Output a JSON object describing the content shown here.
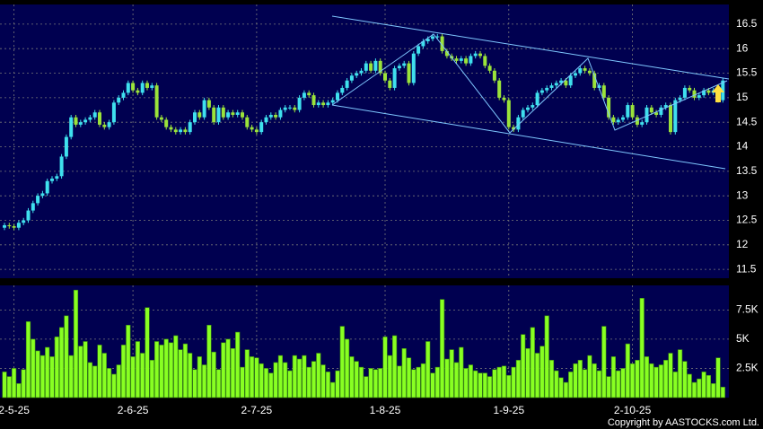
{
  "chart_data": [
    {
      "type": "candlestick",
      "up_color": "#3fe0ee",
      "down_color": "#9be33a",
      "ylim": [
        11.32,
        16.9
      ],
      "yticks": [
        11.5,
        12,
        12.5,
        13,
        13.5,
        14,
        14.5,
        15,
        15.5,
        16,
        16.5
      ],
      "grid": true,
      "open": [
        12.35,
        12.4,
        12.38,
        12.35,
        12.45,
        12.5,
        12.7,
        12.85,
        13.0,
        13.05,
        13.3,
        13.35,
        13.4,
        13.8,
        14.2,
        14.6,
        14.45,
        14.5,
        14.55,
        14.6,
        14.7,
        14.45,
        14.4,
        14.5,
        14.9,
        15.0,
        15.1,
        15.3,
        15.15,
        15.1,
        15.3,
        15.2,
        15.25,
        14.6,
        14.55,
        14.4,
        14.35,
        14.3,
        14.35,
        14.3,
        14.5,
        14.7,
        14.6,
        14.95,
        14.8,
        14.5,
        14.8,
        14.6,
        14.7,
        14.65,
        14.7,
        14.6,
        14.4,
        14.35,
        14.3,
        14.5,
        14.6,
        14.65,
        14.6,
        14.75,
        14.8,
        14.8,
        14.75,
        15.0,
        15.1,
        15.05,
        14.85,
        14.9,
        14.85,
        14.9,
        14.95,
        15.1,
        15.2,
        15.35,
        15.45,
        15.5,
        15.55,
        15.7,
        15.55,
        15.75,
        15.5,
        15.35,
        15.2,
        15.6,
        15.65,
        15.7,
        15.3,
        15.9,
        16.05,
        16.15,
        16.2,
        16.25,
        16.25,
        15.95,
        15.85,
        15.8,
        15.75,
        15.8,
        15.7,
        15.85,
        15.9,
        15.85,
        15.65,
        15.55,
        15.35,
        15.0,
        14.95,
        14.4,
        14.35,
        14.6,
        14.75,
        14.8,
        14.85,
        15.1,
        15.15,
        15.2,
        15.25,
        15.3,
        15.35,
        15.25,
        15.45,
        15.5,
        15.6,
        15.55,
        15.5,
        15.2,
        15.25,
        15.0,
        14.6,
        14.5,
        14.55,
        14.6,
        14.85,
        14.6,
        14.45,
        14.5,
        14.8,
        14.7,
        14.65,
        14.8,
        14.85,
        14.3,
        14.95,
        15.0,
        15.2,
        15.15,
        15.0,
        15.05,
        15.15,
        15.1,
        15.15,
        14.95
      ],
      "high": [
        12.45,
        12.45,
        12.43,
        12.5,
        12.55,
        12.75,
        12.9,
        13.05,
        13.1,
        13.35,
        13.4,
        13.45,
        13.85,
        14.25,
        14.65,
        14.65,
        14.55,
        14.6,
        14.65,
        14.75,
        14.75,
        14.5,
        14.55,
        14.95,
        15.05,
        15.15,
        15.35,
        15.35,
        15.2,
        15.35,
        15.35,
        15.3,
        15.3,
        14.65,
        14.6,
        14.45,
        14.4,
        14.4,
        14.4,
        14.55,
        14.75,
        14.75,
        15.0,
        15.0,
        14.85,
        14.85,
        14.85,
        14.75,
        14.75,
        14.75,
        14.75,
        14.65,
        14.45,
        14.4,
        14.55,
        14.65,
        14.7,
        14.7,
        14.8,
        14.85,
        14.85,
        14.85,
        15.05,
        15.15,
        15.15,
        15.1,
        14.95,
        14.95,
        14.95,
        15.0,
        15.15,
        15.25,
        15.4,
        15.5,
        15.55,
        15.6,
        15.75,
        15.75,
        15.8,
        15.8,
        15.55,
        15.4,
        15.65,
        15.7,
        15.75,
        15.75,
        15.95,
        16.1,
        16.2,
        16.25,
        16.3,
        16.3,
        16.3,
        16.0,
        15.9,
        15.85,
        15.85,
        15.85,
        15.9,
        15.95,
        15.95,
        15.9,
        15.7,
        15.6,
        15.4,
        15.05,
        15.0,
        14.45,
        14.65,
        14.8,
        14.85,
        14.9,
        15.15,
        15.2,
        15.25,
        15.3,
        15.35,
        15.4,
        15.4,
        15.5,
        15.55,
        15.65,
        15.65,
        15.6,
        15.55,
        15.3,
        15.3,
        15.05,
        14.65,
        14.6,
        14.65,
        14.9,
        14.9,
        14.65,
        14.55,
        14.85,
        14.85,
        14.75,
        14.85,
        14.9,
        14.9,
        15.0,
        15.05,
        15.25,
        15.25,
        15.2,
        15.1,
        15.2,
        15.2,
        15.2,
        15.2,
        15.4
      ],
      "low": [
        12.3,
        12.33,
        12.3,
        12.3,
        12.4,
        12.45,
        12.65,
        12.8,
        12.95,
        13.0,
        13.25,
        13.3,
        13.35,
        13.75,
        14.15,
        14.4,
        14.4,
        14.45,
        14.5,
        14.55,
        14.4,
        14.35,
        14.35,
        14.45,
        14.85,
        14.95,
        15.05,
        15.1,
        15.05,
        15.05,
        15.15,
        15.15,
        14.55,
        14.5,
        14.35,
        14.3,
        14.25,
        14.25,
        14.25,
        14.25,
        14.45,
        14.55,
        14.55,
        14.75,
        14.45,
        14.45,
        14.55,
        14.55,
        14.6,
        14.6,
        14.55,
        14.35,
        14.3,
        14.25,
        14.25,
        14.45,
        14.55,
        14.55,
        14.55,
        14.7,
        14.75,
        14.7,
        14.7,
        14.95,
        15.0,
        14.8,
        14.8,
        14.8,
        14.8,
        14.85,
        14.9,
        15.05,
        15.15,
        15.3,
        15.4,
        15.45,
        15.5,
        15.5,
        15.5,
        15.45,
        15.3,
        15.15,
        15.15,
        15.55,
        15.6,
        15.25,
        15.25,
        15.85,
        16.0,
        16.1,
        16.15,
        16.2,
        15.9,
        15.8,
        15.75,
        15.7,
        15.7,
        15.65,
        15.65,
        15.8,
        15.8,
        15.6,
        15.5,
        15.3,
        14.95,
        14.9,
        14.35,
        14.3,
        14.3,
        14.55,
        14.7,
        14.75,
        14.8,
        15.05,
        15.1,
        15.15,
        15.2,
        15.25,
        15.2,
        15.2,
        15.4,
        15.45,
        15.5,
        15.45,
        15.15,
        15.15,
        14.95,
        14.55,
        14.45,
        14.45,
        14.5,
        14.55,
        14.55,
        14.4,
        14.4,
        14.45,
        14.65,
        14.6,
        14.6,
        14.75,
        14.25,
        14.25,
        14.9,
        14.95,
        15.1,
        14.95,
        14.95,
        15.0,
        15.05,
        15.05,
        14.9,
        14.9
      ],
      "close": [
        12.4,
        12.38,
        12.35,
        12.45,
        12.5,
        12.7,
        12.85,
        13.0,
        13.05,
        13.3,
        13.35,
        13.4,
        13.8,
        14.2,
        14.6,
        14.45,
        14.5,
        14.55,
        14.6,
        14.7,
        14.45,
        14.4,
        14.5,
        14.9,
        15.0,
        15.1,
        15.3,
        15.15,
        15.1,
        15.3,
        15.2,
        15.25,
        14.6,
        14.55,
        14.4,
        14.35,
        14.3,
        14.35,
        14.3,
        14.5,
        14.7,
        14.6,
        14.95,
        14.8,
        14.5,
        14.8,
        14.6,
        14.7,
        14.65,
        14.7,
        14.6,
        14.4,
        14.35,
        14.3,
        14.5,
        14.6,
        14.65,
        14.6,
        14.75,
        14.8,
        14.8,
        14.75,
        15.0,
        15.1,
        15.05,
        14.85,
        14.9,
        14.85,
        14.9,
        14.95,
        15.1,
        15.2,
        15.35,
        15.45,
        15.5,
        15.55,
        15.7,
        15.55,
        15.75,
        15.5,
        15.35,
        15.2,
        15.6,
        15.65,
        15.7,
        15.3,
        15.9,
        16.05,
        16.15,
        16.2,
        16.25,
        16.25,
        15.95,
        15.85,
        15.8,
        15.75,
        15.8,
        15.7,
        15.85,
        15.9,
        15.85,
        15.65,
        15.55,
        15.35,
        15.0,
        14.95,
        14.4,
        14.35,
        14.6,
        14.75,
        14.8,
        14.85,
        15.1,
        15.15,
        15.2,
        15.25,
        15.3,
        15.35,
        15.25,
        15.45,
        15.5,
        15.6,
        15.55,
        15.5,
        15.2,
        15.25,
        15.0,
        14.6,
        14.5,
        14.55,
        14.6,
        14.85,
        14.6,
        14.45,
        14.5,
        14.8,
        14.7,
        14.65,
        14.8,
        14.85,
        14.3,
        14.95,
        15.0,
        15.2,
        15.15,
        15.0,
        15.05,
        15.15,
        15.1,
        15.15,
        14.95,
        15.35
      ]
    },
    {
      "type": "bar",
      "color": "#88ff22",
      "ylim": [
        0,
        9.6
      ],
      "yticks": [
        {
          "value": 2.5,
          "label": "2.5K"
        },
        {
          "value": 5,
          "label": "5K"
        },
        {
          "value": 7.5,
          "label": "7.5K"
        }
      ],
      "grid": true,
      "categories": [
        null,
        null,
        "2-5-25",
        null,
        null,
        null,
        null,
        null,
        null,
        null,
        null,
        null,
        null,
        null,
        null,
        null,
        null,
        null,
        null,
        null,
        null,
        null,
        null,
        null,
        null,
        null,
        null,
        "2-6-25",
        null,
        null,
        null,
        null,
        null,
        null,
        null,
        null,
        null,
        null,
        null,
        null,
        null,
        null,
        null,
        null,
        null,
        null,
        null,
        null,
        null,
        null,
        null,
        null,
        null,
        "2-7-25",
        null,
        null,
        null,
        null,
        null,
        null,
        null,
        null,
        null,
        null,
        null,
        null,
        null,
        null,
        null,
        null,
        null,
        null,
        null,
        null,
        null,
        null,
        null,
        null,
        null,
        null,
        "1-8-25",
        null,
        null,
        null,
        null,
        null,
        null,
        null,
        null,
        null,
        null,
        null,
        null,
        null,
        null,
        null,
        null,
        null,
        null,
        null,
        null,
        null,
        null,
        null,
        null,
        null,
        "1-9-25",
        null,
        null,
        null,
        null,
        null,
        null,
        null,
        null,
        null,
        null,
        null,
        null,
        null,
        null,
        null,
        null,
        null,
        null,
        null,
        null,
        null,
        null,
        null,
        null,
        null,
        "2-10-25",
        null,
        null,
        null,
        null,
        null,
        null,
        null,
        null,
        null,
        null,
        null,
        null,
        null,
        null,
        null,
        null,
        null,
        null,
        null
      ],
      "values": [
        2.2,
        1.8,
        2.5,
        1.2,
        2.4,
        6.5,
        5,
        4,
        3.6,
        4.3,
        3.5,
        5.2,
        6,
        7,
        3.6,
        9.2,
        4.4,
        4.8,
        3,
        2.7,
        4.5,
        3.8,
        2.5,
        2,
        2.8,
        4.5,
        6.2,
        3.5,
        4.8,
        3.8,
        7.7,
        3.2,
        4.8,
        4.5,
        5,
        4.7,
        5.3,
        4.1,
        4.6,
        3.8,
        2.4,
        3.5,
        2.8,
        6.2,
        3.9,
        2.4,
        4.7,
        5,
        4.2,
        5.6,
        2.6,
        4.1,
        3.5,
        3.4,
        2.9,
        2.5,
        2.1,
        3,
        3.6,
        3,
        2.3,
        3.6,
        3.3,
        3.6,
        2.6,
        3.1,
        3.8,
        2.8,
        2.2,
        1.3,
        2.3,
        6.1,
        5,
        3.5,
        3.1,
        2.6,
        1.8,
        2.5,
        2.4,
        2.5,
        5.2,
        3.6,
        5.3,
        2.7,
        4.2,
        3.4,
        2.4,
        2.6,
        2.9,
        4.8,
        2.1,
        2.6,
        8.4,
        3.3,
        4.1,
        3,
        4.3,
        2.5,
        2.8,
        2.3,
        2.1,
        2.1,
        1.8,
        2.4,
        2.6,
        2.7,
        1.9,
        2.6,
        3.2,
        5.4,
        4.2,
        6,
        3.8,
        4.4,
        7,
        3.2,
        2.3,
        1.7,
        1.3,
        2.2,
        2.9,
        3.2,
        2.4,
        3.6,
        2.9,
        2.3,
        6.1,
        1.8,
        3.5,
        2.3,
        2.5,
        4.6,
        2.9,
        3.2,
        8.5,
        3.5,
        2.9,
        2.6,
        2.8,
        3.2,
        3.8,
        2.2,
        4.1,
        3.1,
        2,
        1.3,
        1.6,
        2.2,
        1.9,
        1.2,
        3.4,
        0.9
      ],
      "copyright": "Copyright by AASTOCKS.com Ltd."
    }
  ]
}
